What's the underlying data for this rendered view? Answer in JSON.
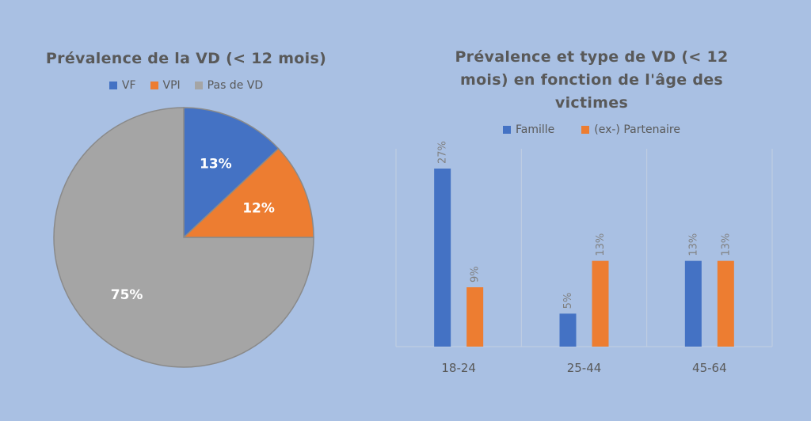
{
  "colors": {
    "series1": "#4472c4",
    "series2": "#ed7d31",
    "series3": "#a5a5a5",
    "text": "#595959",
    "background": "#a9c0e3"
  },
  "chart_data": [
    {
      "type": "pie",
      "title": "Prévalence de la VD (< 12 mois)",
      "labels": [
        "VF",
        "VPI",
        "Pas de VD"
      ],
      "values": [
        13,
        12,
        75
      ],
      "data_labels": [
        "13%",
        "12%",
        "75%"
      ],
      "legend": "top"
    },
    {
      "type": "bar",
      "title": "Prévalence et type de VD (< 12 mois) en fonction de l'âge des victimes",
      "categories": [
        "18-24",
        "25-44",
        "45-64"
      ],
      "series": [
        {
          "name": "Famille",
          "values": [
            27,
            5,
            13
          ],
          "data_labels": [
            "27%",
            "5%",
            "13%"
          ]
        },
        {
          "name": "(ex-) Partenaire",
          "values": [
            9,
            13,
            13
          ],
          "data_labels": [
            "9%",
            "13%",
            "13%"
          ]
        }
      ],
      "ylim": [
        0,
        30
      ],
      "grid": "vertical category separators",
      "legend": "top"
    }
  ]
}
